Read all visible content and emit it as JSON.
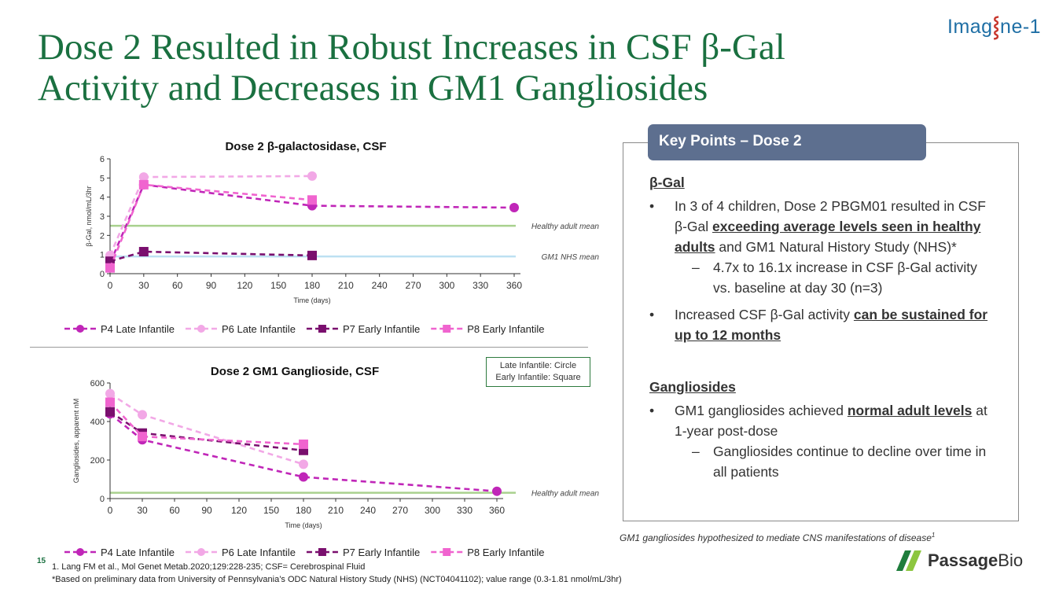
{
  "slide": {
    "title_line1": "Dose 2 Resulted in Robust Increases in CSF β-Gal",
    "title_line2": "Activity and Decreases in GM1 Gangliosides",
    "brand_top_a": "Imag",
    "brand_top_helix": "⸾",
    "brand_top_b": "ne-1",
    "page_number": "15"
  },
  "shape_key": {
    "line1": "Late Infantile: Circle",
    "line2": "Early Infantile: Square"
  },
  "key_points": {
    "tab": "Key Points – Dose 2",
    "bgal_heading": "β-Gal",
    "bullet_glyph": "•",
    "dash_glyph": "–",
    "b1_pre": "In 3 of 4 children, Dose 2 PBGM01 resulted in CSF β-Gal ",
    "b1_bold": "exceeding average levels seen in healthy adults",
    "b1_post": " and GM1 Natural History Study (NHS)*",
    "b1_sub": "4.7x to 16.1x increase in CSF β-Gal activity vs. baseline at day 30 (n=3)",
    "b2_pre": "Increased CSF β-Gal activity ",
    "b2_bold": "can be sustained for up to 12 months",
    "gang_heading": "Gangliosides",
    "b3_pre": "GM1 gangliosides achieved ",
    "b3_bold": "normal adult levels",
    "b3_post": " at 1-year post-dose",
    "b3_sub": "Gangliosides continue to decline over time in all patients"
  },
  "footnotes": {
    "right_note": "GM1 gangliosides hypothesized to mediate CNS manifestations of disease",
    "right_note_sup": "1",
    "ref1": "1. Lang FM et al., Mol Genet Metab.2020;129:228-235; CSF= Cerebrospinal Fluid",
    "ref2": "*Based on preliminary data from University of Pennsylvania’s ODC  Natural History Study (NHS) (NCT04041102); value range (0.3-1.81 nmol/mL/3hr)"
  },
  "logo": {
    "text_a": "Passage",
    "text_b": "Bio",
    "color_dark": "#1e7d3c",
    "color_light": "#8cc63f"
  },
  "chart_data": [
    {
      "type": "line",
      "title": "Dose 2 β-galactosidase, CSF",
      "xlabel": "Time (days)",
      "ylabel": "β-Gal, nmol/mL/3hr",
      "xlim": [
        0,
        360
      ],
      "ylim": [
        0,
        6
      ],
      "xticks": [
        0,
        30,
        60,
        90,
        120,
        150,
        180,
        210,
        240,
        270,
        300,
        330,
        360
      ],
      "yticks": [
        0,
        1,
        2,
        3,
        4,
        5,
        6
      ],
      "grid": false,
      "legend_position": "bottom",
      "reference_lines": [
        {
          "label": "Healthy adult mean",
          "y": 2.5,
          "color": "#a9d18e"
        },
        {
          "label": "GM1 NHS mean",
          "y": 0.9,
          "color": "#bde0f2"
        }
      ],
      "series": [
        {
          "name": "P4 Late Infantile",
          "marker": "circle",
          "color": "#c026b8",
          "x": [
            0,
            30,
            180,
            360
          ],
          "y": [
            0.55,
            4.65,
            3.55,
            3.45
          ]
        },
        {
          "name": "P6 Late Infantile",
          "marker": "circle",
          "color": "#f2a8e6",
          "x": [
            0,
            30,
            180
          ],
          "y": [
            0.95,
            5.05,
            5.1
          ]
        },
        {
          "name": "P7 Early Infantile",
          "marker": "square",
          "color": "#7a0f6e",
          "x": [
            0,
            30,
            180
          ],
          "y": [
            0.65,
            1.15,
            0.95
          ]
        },
        {
          "name": "P8 Early Infantile",
          "marker": "square",
          "color": "#f064cf",
          "x": [
            0,
            30,
            180
          ],
          "y": [
            0.3,
            4.65,
            3.85
          ]
        }
      ]
    },
    {
      "type": "line",
      "title": "Dose 2 GM1 Ganglioside, CSF",
      "xlabel": "Time (days)",
      "ylabel": "Gangliosides, apparent nM",
      "xlim": [
        0,
        360
      ],
      "ylim": [
        0,
        600
      ],
      "xticks": [
        0,
        30,
        60,
        90,
        120,
        150,
        180,
        210,
        240,
        270,
        300,
        330,
        360
      ],
      "yticks": [
        0,
        200,
        400,
        600
      ],
      "grid": false,
      "legend_position": "bottom",
      "reference_lines": [
        {
          "label": "Healthy adult mean",
          "y": 30,
          "color": "#a9d18e"
        }
      ],
      "series": [
        {
          "name": "P4 Late Infantile",
          "marker": "circle",
          "color": "#c026b8",
          "x": [
            0,
            30,
            180,
            360
          ],
          "y": [
            440,
            305,
            112,
            38
          ]
        },
        {
          "name": "P6 Late Infantile",
          "marker": "circle",
          "color": "#f2a8e6",
          "x": [
            0,
            30,
            180
          ],
          "y": [
            545,
            435,
            178
          ]
        },
        {
          "name": "P7 Early Infantile",
          "marker": "square",
          "color": "#7a0f6e",
          "x": [
            0,
            30,
            180
          ],
          "y": [
            450,
            340,
            250
          ]
        },
        {
          "name": "P8 Early Infantile",
          "marker": "square",
          "color": "#f064cf",
          "x": [
            0,
            30,
            180
          ],
          "y": [
            500,
            322,
            282
          ]
        }
      ]
    }
  ]
}
